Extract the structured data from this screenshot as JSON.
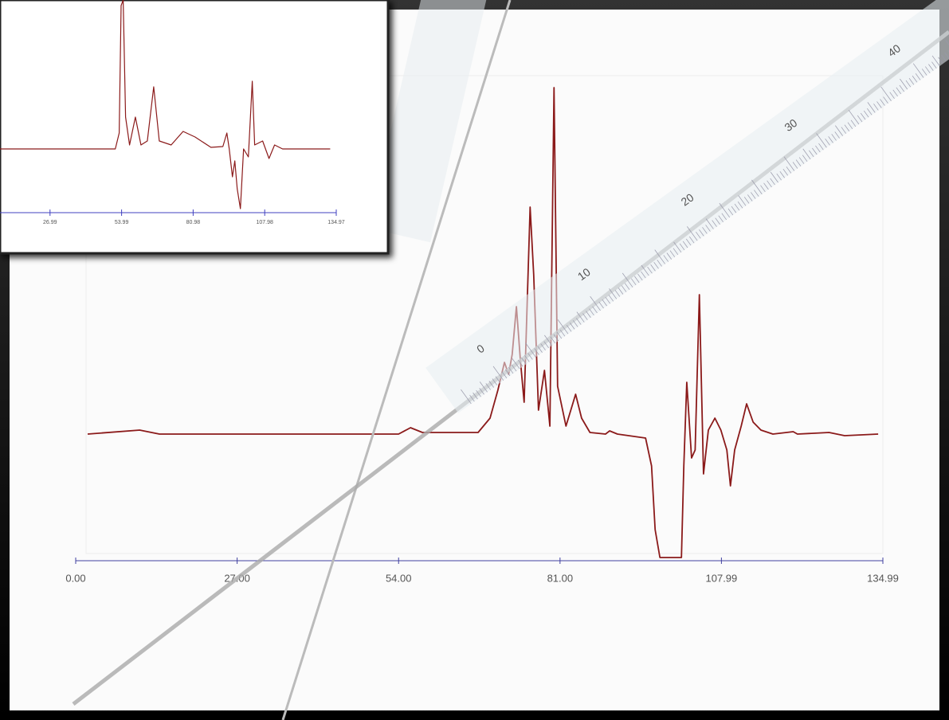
{
  "chart_data": [
    {
      "type": "line",
      "color": "#8b1a1a",
      "x": [
        2,
        10.7,
        14,
        54,
        56,
        58,
        67.3,
        69.3,
        70.6,
        71.7,
        72.4,
        73,
        73.7,
        74.4,
        75,
        76,
        76.6,
        77.4,
        78.4,
        79.3,
        80,
        80.6,
        82,
        83.6,
        84.6,
        86,
        88.6,
        89.3,
        90.6,
        95.3,
        96.3,
        96.9,
        97.7,
        101.3,
        101.7,
        102.2,
        103,
        103.6,
        104.3,
        105,
        105.8,
        106.9,
        107.9,
        108.9,
        109.5,
        110.2,
        111.3,
        112.2,
        113.3,
        114.6,
        116.6,
        120,
        120.7,
        126,
        128.6,
        134.2
      ],
      "values": [
        0,
        5,
        0,
        0,
        8,
        2,
        2,
        20,
        55,
        90,
        75,
        100,
        160,
        90,
        40,
        285,
        200,
        30,
        80,
        10,
        435,
        60,
        10,
        50,
        20,
        2,
        0,
        4,
        0,
        -5,
        -40,
        -120,
        -155,
        -155,
        -40,
        65,
        -30,
        -20,
        175,
        -50,
        5,
        20,
        5,
        -20,
        -65,
        -20,
        10,
        38,
        15,
        5,
        0,
        3,
        0,
        2,
        -2,
        0
      ],
      "xlim": [
        0,
        134.99
      ],
      "ylim": [
        -160,
        445
      ],
      "xticks": [
        {
          "value": 0,
          "label": "0.00"
        },
        {
          "value": 27,
          "label": "27.00"
        },
        {
          "value": 54,
          "label": "54.00"
        },
        {
          "value": 81,
          "label": "81.00"
        },
        {
          "value": 107.99,
          "label": "107.99"
        },
        {
          "value": 134.99,
          "label": "134.99"
        }
      ]
    },
    {
      "type": "line",
      "color": "#8b1a1a",
      "x": [
        8.1,
        51.6,
        53.1,
        53.8,
        54.6,
        55.5,
        57,
        59.2,
        61.3,
        63.7,
        66.1,
        68.2,
        72.7,
        77.2,
        81.7,
        87.7,
        92.2,
        93.7,
        94.6,
        95.8,
        96.7,
        97.6,
        98.8,
        100,
        101.8,
        103.3,
        104.2,
        107.2,
        109.6,
        111.7,
        114.7,
        132.7
      ],
      "values": [
        0,
        0,
        20,
        180,
        187,
        40,
        5,
        40,
        5,
        10,
        78,
        10,
        5,
        22,
        15,
        2,
        3,
        20,
        0,
        -35,
        -15,
        -50,
        -75,
        0,
        -10,
        85,
        5,
        10,
        -12,
        5,
        0,
        0
      ],
      "xlim": [
        0,
        134.97
      ],
      "ylim": [
        -80,
        187
      ],
      "xticks": [
        {
          "value": 26.99,
          "label": "26.99"
        },
        {
          "value": 53.99,
          "label": "53.99"
        },
        {
          "value": 80.98,
          "label": "80.98"
        },
        {
          "value": 107.98,
          "label": "107.98"
        },
        {
          "value": 134.97,
          "label": "134.97"
        }
      ]
    }
  ],
  "ruler_labels": [
    "0",
    "10",
    "20",
    "30",
    "40"
  ]
}
